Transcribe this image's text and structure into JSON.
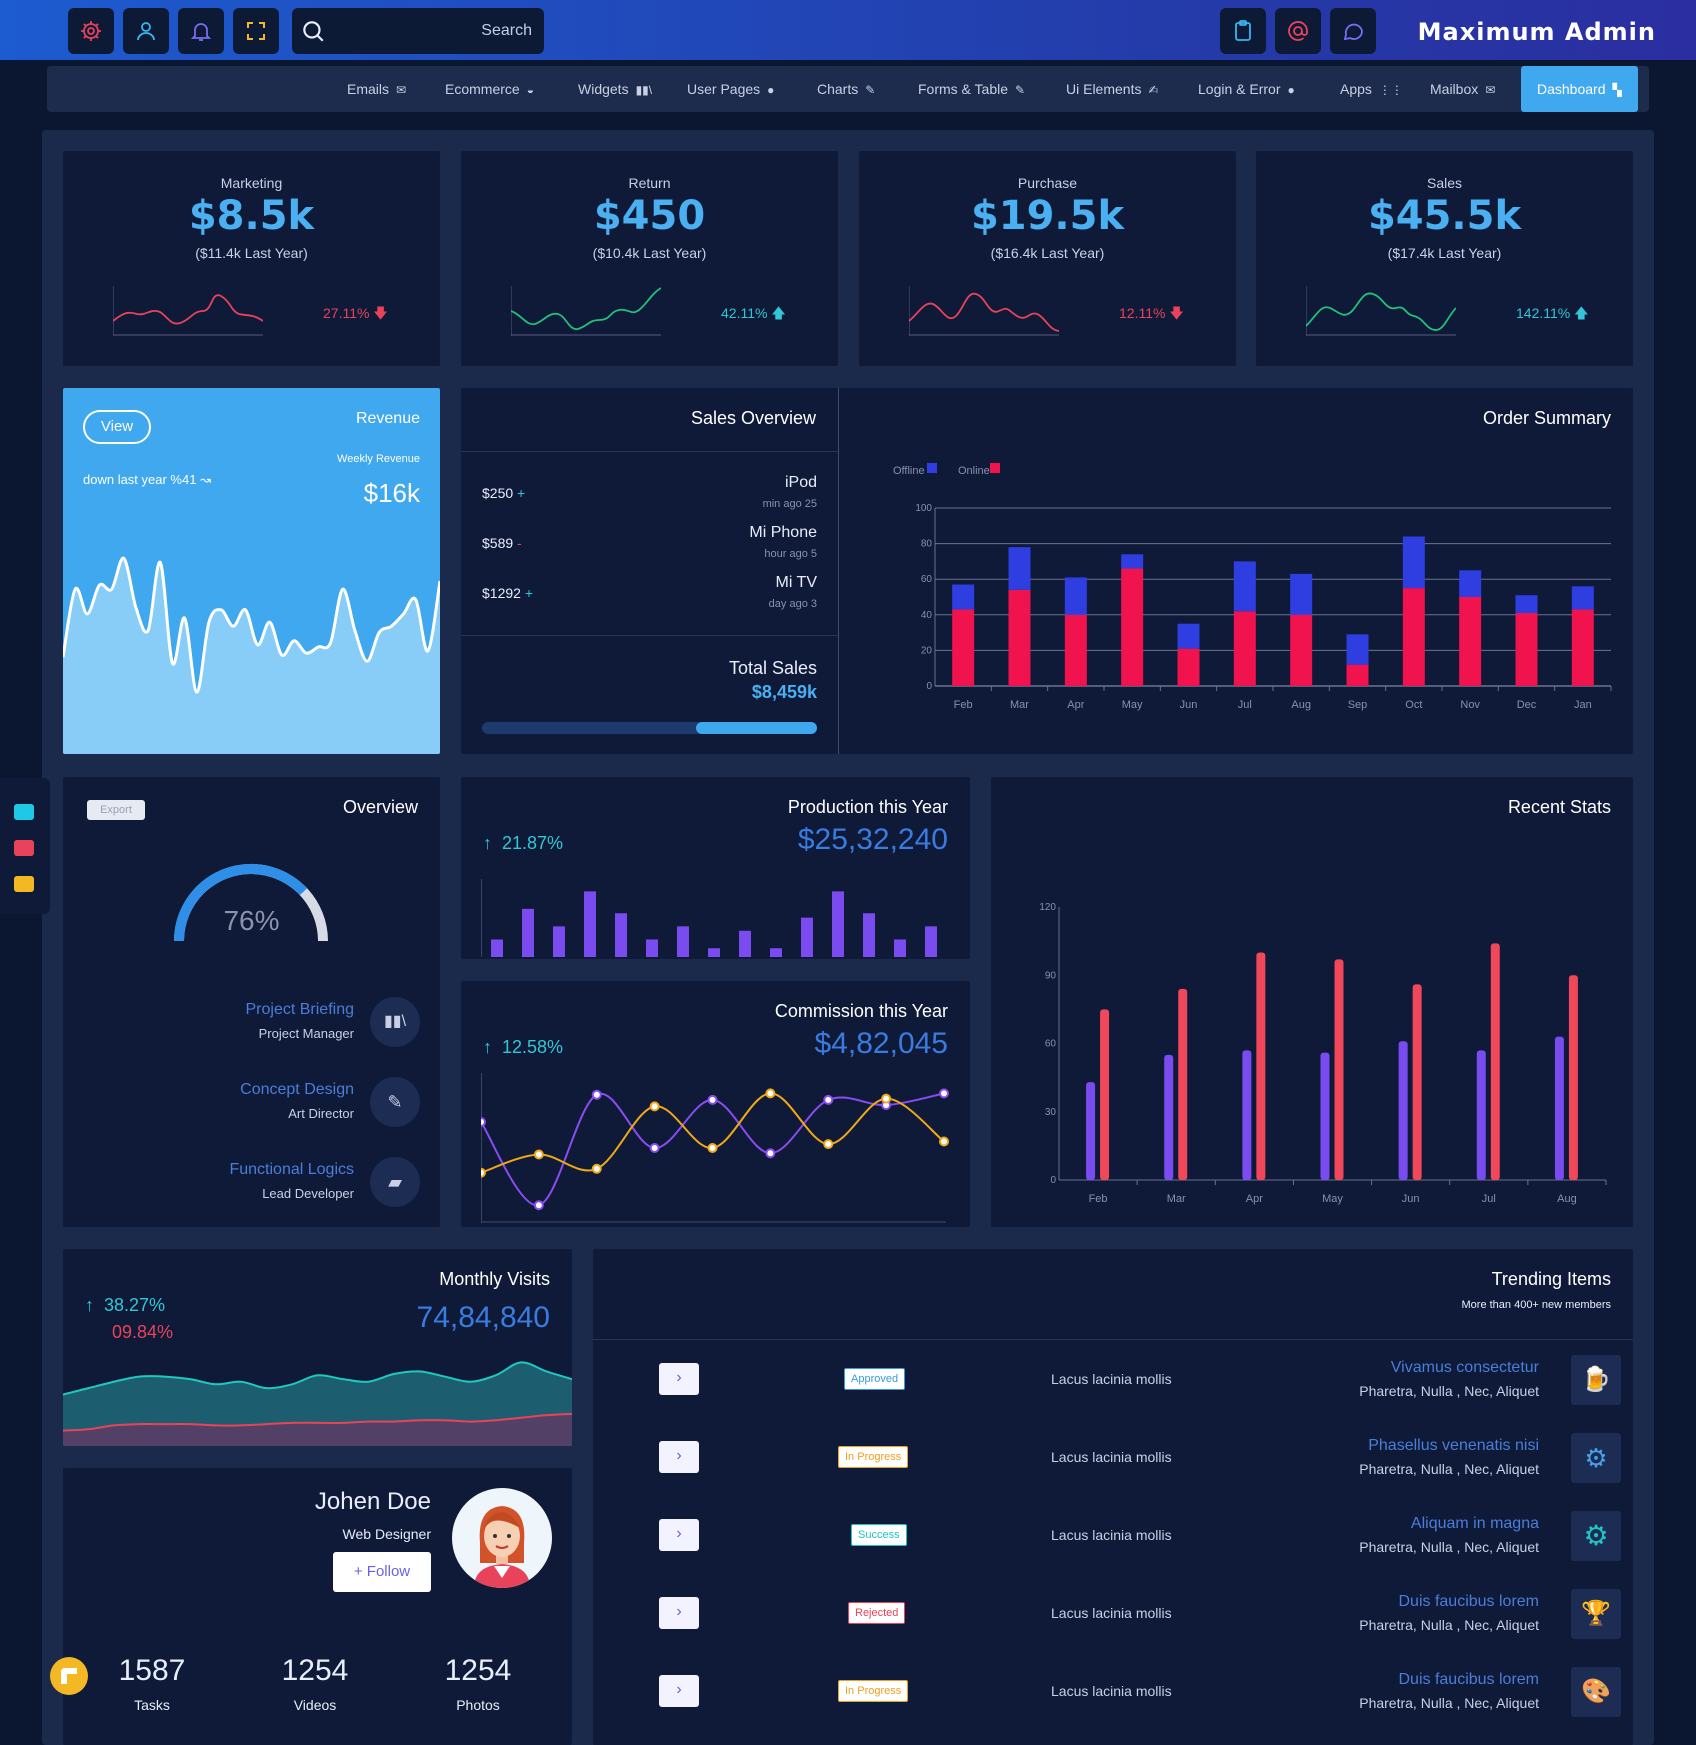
{
  "topbar": {
    "search_placeholder": "Search",
    "brand": "Maximum Admin",
    "left_icons": [
      "gear-icon",
      "user-icon",
      "bell-icon",
      "fullscreen-icon"
    ],
    "right_icons": [
      "clipboard-icon",
      "at-icon",
      "chat-icon"
    ]
  },
  "nav": {
    "items": [
      {
        "label": "Emails",
        "icon": "envelope-icon"
      },
      {
        "label": "Ecommerce",
        "icon": "basket-icon"
      },
      {
        "label": "Widgets",
        "icon": "library-icon"
      },
      {
        "label": "User Pages",
        "icon": "person-icon"
      },
      {
        "label": "Charts",
        "icon": "pin-icon"
      },
      {
        "label": "Forms & Table",
        "icon": "pin-icon"
      },
      {
        "label": "Ui Elements",
        "icon": "edit-icon"
      },
      {
        "label": "Login & Error",
        "icon": "record-icon"
      },
      {
        "label": "Apps",
        "icon": "grid-icon"
      },
      {
        "label": "Mailbox",
        "icon": "envelope-icon"
      },
      {
        "label": "Dashboard",
        "icon": "dashboard-icon"
      }
    ]
  },
  "kpis": [
    {
      "label": "Marketing",
      "value": "$8.5k",
      "sub": "($11.4k Last Year)",
      "pct": "27.11%",
      "trend": "down",
      "color": "#e8435a"
    },
    {
      "label": "Return",
      "value": "$450",
      "sub": "($10.4k Last Year)",
      "pct": "42.11%",
      "trend": "up",
      "color": "#32c7d5"
    },
    {
      "label": "Purchase",
      "value": "$19.5k",
      "sub": "($16.4k Last Year)",
      "pct": "12.11%",
      "trend": "down",
      "color": "#e8435a"
    },
    {
      "label": "Sales",
      "value": "$45.5k",
      "sub": "($17.4k Last Year)",
      "pct": "142.11%",
      "trend": "up",
      "color": "#32c7d5"
    }
  ],
  "revenue": {
    "view_label": "View",
    "title": "Revenue",
    "weekly_label": "Weekly Revenue",
    "value": "$16k",
    "down_text": "down last year %41"
  },
  "sales_overview": {
    "title": "Sales Overview",
    "items": [
      {
        "amount": "$250",
        "sign": "+",
        "name": "iPod",
        "time": "min ago 25"
      },
      {
        "amount": "$589",
        "sign": "-",
        "name": "Mi Phone",
        "time": "hour ago 5"
      },
      {
        "amount": "$1292",
        "sign": "+",
        "name": "Mi TV",
        "time": "day ago 3"
      }
    ],
    "total_label": "Total Sales",
    "total_value": "$8,459k",
    "progress": 0.6
  },
  "overview": {
    "export_label": "Export",
    "title": "Overview",
    "gauge_text": "76%",
    "gauge_value": 0.76,
    "people": [
      {
        "title": "Project Briefing",
        "role": "Project Manager",
        "icon": "library-icon"
      },
      {
        "title": "Concept Design",
        "role": "Art Director",
        "icon": "edit-icon"
      },
      {
        "title": "Functional Logics",
        "role": "Lead Developer",
        "icon": "chat-icon"
      }
    ]
  },
  "production": {
    "title": "Production this Year",
    "pct": "21.87%",
    "value": "$25,32,240"
  },
  "commission": {
    "title": "Commission this Year",
    "pct": "12.58%",
    "value": "$4,82,045"
  },
  "recent_stats_title": "Recent Stats",
  "order_summary_title": "Order Summary",
  "monthly_visits": {
    "title": "Monthly Visits",
    "pct_up": "38.27%",
    "pct_down": "09.84%",
    "value": "74,84,840"
  },
  "profile": {
    "name": "Johen Doe",
    "role": "Web Designer",
    "follow_label": "Follow",
    "stats": [
      {
        "value": "1587",
        "label": "Tasks"
      },
      {
        "value": "1254",
        "label": "Videos"
      },
      {
        "value": "1254",
        "label": "Photos"
      }
    ]
  },
  "trending": {
    "title": "Trending Items",
    "subtitle": "More than 400+ new members",
    "rows": [
      {
        "status": "Approved",
        "status_color": "#3a9bd8",
        "text": "Lacus lacinia mollis",
        "item": "Vivamus consectetur",
        "meta": "Pharetra, Nulla , Nec, Aliquet",
        "icon": "beer-icon"
      },
      {
        "status": "In Progress",
        "status_color": "#f0a020",
        "text": "Lacus lacinia mollis",
        "item": "Phasellus venenatis nisi",
        "meta": "Pharetra, Nulla , Nec, Aliquet",
        "icon": "gear-wrench-icon"
      },
      {
        "status": "Success",
        "status_color": "#21c5c5",
        "text": "Lacus lacinia mollis",
        "item": "Aliquam in magna",
        "meta": "Pharetra, Nulla , Nec, Aliquet",
        "icon": "cog-check-icon"
      },
      {
        "status": "Rejected",
        "status_color": "#e8435a",
        "text": "Lacus lacinia mollis",
        "item": "Duis faucibus lorem",
        "meta": "Pharetra, Nulla , Nec, Aliquet",
        "icon": "trophy-icon"
      },
      {
        "status": "In Progress",
        "status_color": "#f0a020",
        "text": "Lacus lacinia mollis",
        "item": "Duis faucibus lorem",
        "meta": "Pharetra, Nulla , Nec, Aliquet",
        "icon": "palette-icon"
      }
    ]
  },
  "chart_data": [
    {
      "type": "bar",
      "stacked": true,
      "categories": [
        "Feb",
        "Mar",
        "Apr",
        "May",
        "Jun",
        "Jul",
        "Aug",
        "Sep",
        "Oct",
        "Nov",
        "Dec",
        "Jan"
      ],
      "series": [
        {
          "name": "Online",
          "color": "#f0134d",
          "values": [
            43,
            54,
            40,
            66,
            21,
            42,
            40,
            12,
            55,
            50,
            41,
            43
          ]
        },
        {
          "name": "Offline",
          "color": "#2f3ee0",
          "values": [
            14,
            24,
            21,
            8,
            14,
            28,
            23,
            17,
            29,
            15,
            10,
            13
          ]
        }
      ],
      "yticks": [
        0,
        20,
        40,
        60,
        80,
        100
      ],
      "ylim": [
        0,
        100
      ],
      "legend": "top-left",
      "grid": true
    },
    {
      "type": "bar",
      "categories": [
        "Feb",
        "Mar",
        "Apr",
        "May",
        "Jun",
        "Jul",
        "Aug"
      ],
      "series": [
        {
          "color": "#7a4cf0",
          "values": [
            43,
            55,
            57,
            56,
            61,
            57,
            63
          ]
        },
        {
          "color": "#f0475a",
          "values": [
            75,
            84,
            100,
            97,
            86,
            104,
            90
          ]
        }
      ],
      "yticks": [
        0,
        30,
        60,
        90,
        120
      ],
      "ylim": [
        0,
        120
      ]
    },
    {
      "type": "bar",
      "color": "#7a4cf0",
      "values": [
        4,
        11,
        7,
        15,
        10,
        4,
        7,
        2,
        6,
        2,
        9,
        15,
        10,
        4,
        7
      ]
    },
    {
      "type": "line",
      "series": [
        {
          "color": "#8a4cf0",
          "values": [
            70,
            6,
            91,
            50,
            87,
            46,
            87,
            83,
            92
          ]
        },
        {
          "color": "#f0a818",
          "values": [
            31,
            45,
            34,
            82,
            50,
            92,
            53,
            88,
            55
          ]
        }
      ],
      "x": [
        0,
        1,
        2,
        3,
        4,
        5,
        6,
        7,
        8
      ]
    },
    {
      "type": "area",
      "series": [
        {
          "color": "#1ec9c0",
          "values": [
            40,
            45,
            50,
            54,
            54,
            52,
            48,
            50,
            45,
            48,
            55,
            52,
            50,
            56,
            58,
            54,
            50,
            55,
            65,
            58,
            52
          ]
        },
        {
          "color": "#e8435a",
          "values": [
            12,
            13,
            16,
            17,
            17,
            17,
            16,
            16,
            17,
            18,
            18,
            18,
            19,
            19,
            20,
            20,
            19,
            20,
            22,
            24,
            25
          ]
        }
      ]
    },
    {
      "type": "area",
      "values": [
        47,
        80,
        68,
        82,
        80,
        95,
        71,
        60,
        93,
        44,
        66,
        30,
        64,
        70,
        62,
        70,
        53,
        64,
        48,
        55,
        49,
        52,
        54,
        80,
        60,
        45,
        59,
        62,
        68,
        75,
        50,
        84
      ]
    },
    {
      "type": "line",
      "values": [
        35,
        49,
        42,
        48,
        43,
        36,
        39,
        42,
        27,
        36,
        36
      ]
    },
    {
      "type": "line",
      "values": [
        40,
        37,
        31,
        33,
        33,
        28,
        34,
        43,
        50
      ]
    },
    {
      "type": "line",
      "values": [
        45,
        41,
        38,
        35,
        40,
        44,
        49,
        45,
        46,
        40,
        45
      ]
    },
    {
      "type": "line",
      "values": [
        30,
        39,
        44,
        40,
        42,
        47,
        41,
        44,
        35,
        39,
        39
      ]
    }
  ]
}
